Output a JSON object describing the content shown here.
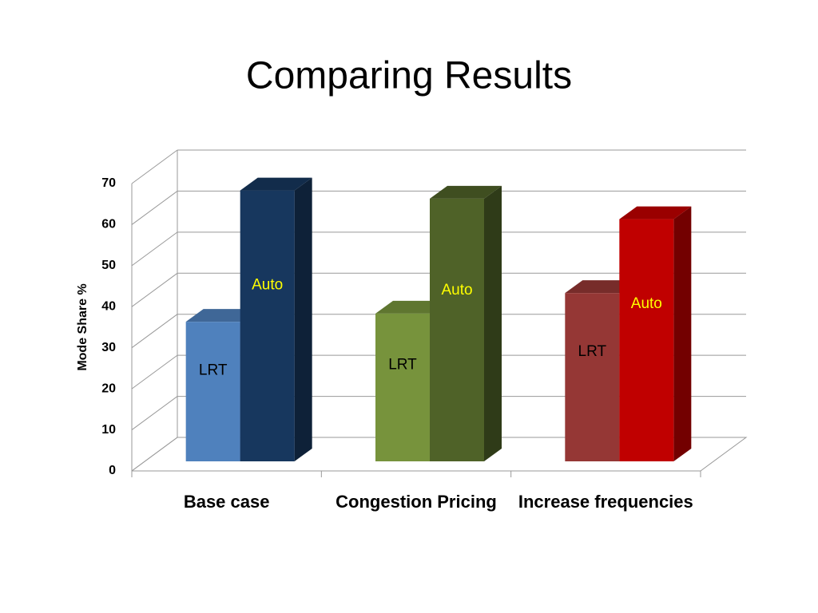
{
  "chart_data": {
    "type": "bar3d",
    "title": "Comparing Results",
    "y_label": "Mode Share %",
    "categories": [
      "Base case",
      "Congestion Pricing",
      "Increase frequencies"
    ],
    "series": [
      {
        "name": "LRT",
        "label_color": "#000000",
        "colors": [
          "#4f81bd",
          "#77933c",
          "#953735"
        ],
        "values": [
          34,
          36,
          41
        ]
      },
      {
        "name": "Auto",
        "label_color": "#ffff00",
        "colors": [
          "#17375e",
          "#4f6228",
          "#c00000"
        ],
        "values": [
          66,
          64,
          59
        ]
      }
    ],
    "ylim": [
      0,
      70
    ],
    "yticks": [
      0,
      10,
      20,
      30,
      40,
      50,
      60,
      70
    ],
    "grid": true
  }
}
